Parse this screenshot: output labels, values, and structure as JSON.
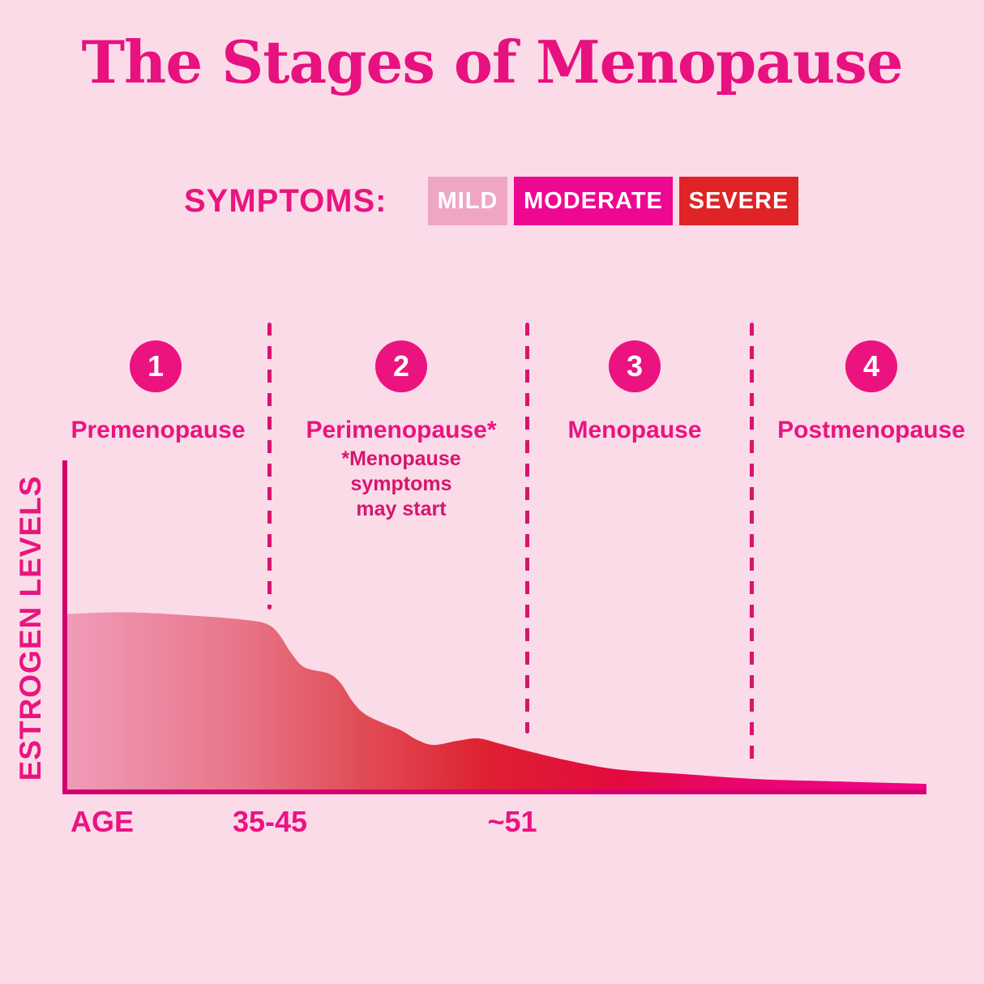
{
  "title": "The Stages of Menopause",
  "symptoms": {
    "label": "SYMPTOMS:",
    "badges": [
      {
        "label": "MILD"
      },
      {
        "label": "MODERATE"
      },
      {
        "label": "SEVERE"
      }
    ]
  },
  "stages": [
    {
      "number": "1",
      "label": "Premenopause"
    },
    {
      "number": "2",
      "label": "Perimenopause*",
      "note_lines": [
        "*Menopause",
        "symptoms",
        "may start"
      ]
    },
    {
      "number": "3",
      "label": "Menopause"
    },
    {
      "number": "4",
      "label": "Postmenopause"
    }
  ],
  "chart": {
    "ylabel": "ESTROGEN LEVELS",
    "x_labels": {
      "age": "AGE",
      "mid": "35-45",
      "late": "~51"
    }
  },
  "colors": {
    "background": "#FBDBE8",
    "title_color": "#E7117F",
    "accent_pink": "#E9157F",
    "note_color": "#D6156F",
    "circle_color": "#EB1380",
    "dashed_line_color": "#D7156F",
    "axis_color": "#D5006F",
    "badge_mild": "#EFA6C5",
    "badge_moderate": "#EE0790",
    "badge_severe": "#DF2327",
    "age_label_color": "#EB1284"
  },
  "chart_data": {
    "type": "area",
    "title": "The Stages of Menopause",
    "xlabel": "AGE",
    "ylabel": "ESTROGEN LEVELS",
    "x_tick_labels": [
      "AGE",
      "35-45",
      "~51"
    ],
    "y_axis_scale": "qualitative (no numeric ticks)",
    "stages": [
      "Premenopause",
      "Perimenopause",
      "Menopause",
      "Postmenopause"
    ],
    "stage_boundary_ages": [
      "35-45",
      "~51"
    ],
    "annotation": "*Menopause symptoms may start (during Perimenopause)",
    "symptom_severity_legend": [
      "MILD",
      "MODERATE",
      "SEVERE"
    ],
    "series": [
      {
        "name": "Estrogen level",
        "x_unit": "fraction of age axis (0 = axis origin, 1 = right end)",
        "y_unit": "fraction of y-axis height (estimated, qualitative)",
        "points": [
          [
            0.0,
            0.54
          ],
          [
            0.078,
            0.545
          ],
          [
            0.17,
            0.532
          ],
          [
            0.219,
            0.52
          ],
          [
            0.239,
            0.507
          ],
          [
            0.251,
            0.478
          ],
          [
            0.265,
            0.422
          ],
          [
            0.28,
            0.38
          ],
          [
            0.308,
            0.361
          ],
          [
            0.322,
            0.332
          ],
          [
            0.336,
            0.276
          ],
          [
            0.35,
            0.239
          ],
          [
            0.373,
            0.21
          ],
          [
            0.392,
            0.19
          ],
          [
            0.411,
            0.161
          ],
          [
            0.43,
            0.146
          ],
          [
            0.458,
            0.159
          ],
          [
            0.481,
            0.166
          ],
          [
            0.505,
            0.151
          ],
          [
            0.537,
            0.129
          ],
          [
            0.584,
            0.1
          ],
          [
            0.641,
            0.073
          ],
          [
            0.716,
            0.059
          ],
          [
            0.8,
            0.044
          ],
          [
            0.885,
            0.037
          ],
          [
            1.0,
            0.029
          ]
        ]
      }
    ],
    "gradient": [
      [
        0.0,
        "#F09DBB"
      ],
      [
        0.21,
        "#E87487"
      ],
      [
        0.35,
        "#E04B55"
      ],
      [
        0.49,
        "#DE2131"
      ],
      [
        0.64,
        "#E30A3E"
      ],
      [
        0.79,
        "#EA0570"
      ],
      [
        1.0,
        "#F10389"
      ]
    ],
    "legend_position": "none",
    "grid": false
  }
}
